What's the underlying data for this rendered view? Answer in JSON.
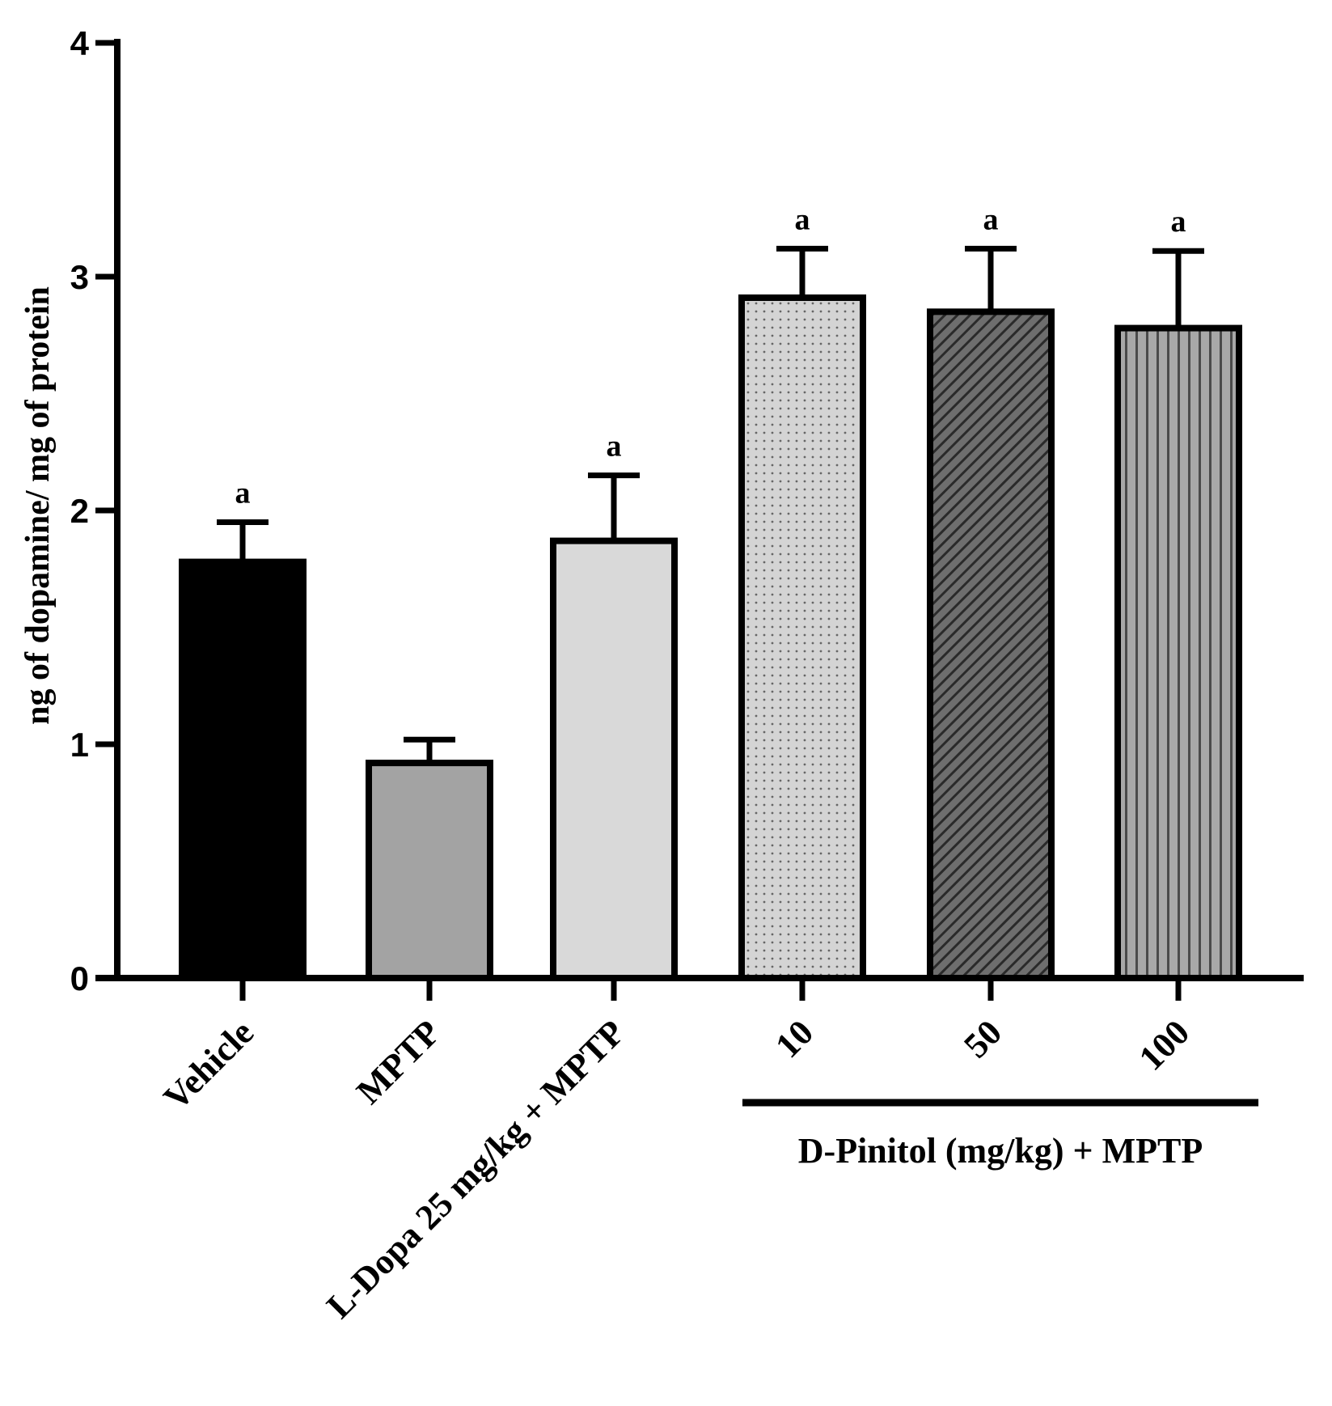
{
  "chart_data": {
    "type": "bar",
    "title": "",
    "xlabel": "",
    "ylabel": "ng of dopamine/ mg of protein",
    "ylim": [
      0,
      4
    ],
    "yticks": [
      0,
      1,
      2,
      3,
      4
    ],
    "categories": [
      "Vehicle",
      "MPTP",
      "L-Dopa 25 mg/kg + MPTP",
      "10",
      "50",
      "100"
    ],
    "values": [
      1.78,
      0.92,
      1.87,
      2.91,
      2.85,
      2.78
    ],
    "errors": [
      0.17,
      0.1,
      0.28,
      0.21,
      0.27,
      0.33
    ],
    "significance": [
      "a",
      "",
      "a",
      "a",
      "a",
      "a"
    ],
    "fills": [
      "solid-black",
      "solid-gray",
      "solid-light-gray",
      "dots",
      "diagonal-hatch",
      "vertical-stripes"
    ],
    "colors": {
      "vehicle": "#000000",
      "mptp": "#a3a3a3",
      "ldopa": "#d9d9d9",
      "dots_bg": "#d4d4d4",
      "hatch_bg": "#6e6e6e",
      "stripe_bg": "#a8a8a8",
      "axis": "#000000"
    },
    "group_annotation": {
      "label": "D-Pinitol (mg/kg) + MPTP",
      "spans": [
        "10",
        "50",
        "100"
      ]
    }
  }
}
